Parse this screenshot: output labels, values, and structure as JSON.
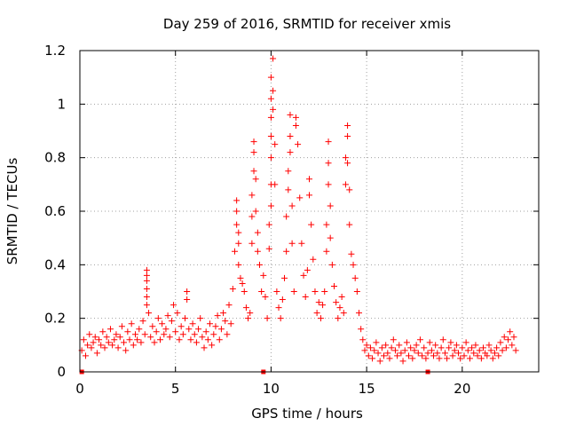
{
  "chart_data": {
    "type": "scatter",
    "title": "Day 259 of 2016, SRMTID for receiver xmis",
    "xlabel": "GPS time / hours",
    "ylabel": "SRMTID / TECUs",
    "xlim": [
      0,
      24
    ],
    "ylim": [
      0,
      1.2
    ],
    "xticks": [
      0,
      5,
      10,
      15,
      20
    ],
    "yticks": [
      0,
      0.2,
      0.4,
      0.6,
      0.8,
      1,
      1.2
    ],
    "xtick_labels": [
      "0",
      "5",
      "10",
      "15",
      "20"
    ],
    "ytick_labels": [
      "0",
      "0.2",
      "0.4",
      "0.6",
      "0.8",
      "1",
      "1.2"
    ],
    "grid": true,
    "marker": "plus",
    "color": "#ff0000",
    "baseline_markers_x": [
      0.1,
      9.6,
      18.2
    ],
    "series": [
      {
        "name": "SRMTID",
        "points": [
          [
            0.1,
            0.08
          ],
          [
            0.2,
            0.12
          ],
          [
            0.3,
            0.06
          ],
          [
            0.4,
            0.1
          ],
          [
            0.5,
            0.14
          ],
          [
            0.6,
            0.09
          ],
          [
            0.7,
            0.11
          ],
          [
            0.8,
            0.13
          ],
          [
            0.9,
            0.07
          ],
          [
            1.0,
            0.12
          ],
          [
            1.1,
            0.1
          ],
          [
            1.2,
            0.15
          ],
          [
            1.3,
            0.09
          ],
          [
            1.4,
            0.13
          ],
          [
            1.5,
            0.11
          ],
          [
            1.6,
            0.16
          ],
          [
            1.7,
            0.1
          ],
          [
            1.8,
            0.12
          ],
          [
            1.9,
            0.14
          ],
          [
            2.0,
            0.09
          ],
          [
            2.1,
            0.13
          ],
          [
            2.2,
            0.17
          ],
          [
            2.3,
            0.11
          ],
          [
            2.4,
            0.08
          ],
          [
            2.5,
            0.15
          ],
          [
            2.6,
            0.12
          ],
          [
            2.7,
            0.18
          ],
          [
            2.8,
            0.1
          ],
          [
            2.9,
            0.14
          ],
          [
            3.0,
            0.12
          ],
          [
            3.1,
            0.16
          ],
          [
            3.2,
            0.11
          ],
          [
            3.3,
            0.19
          ],
          [
            3.4,
            0.14
          ],
          [
            3.5,
            0.38
          ],
          [
            3.5,
            0.36
          ],
          [
            3.5,
            0.34
          ],
          [
            3.5,
            0.31
          ],
          [
            3.5,
            0.28
          ],
          [
            3.5,
            0.25
          ],
          [
            3.6,
            0.22
          ],
          [
            3.7,
            0.13
          ],
          [
            3.8,
            0.17
          ],
          [
            3.9,
            0.11
          ],
          [
            4.0,
            0.15
          ],
          [
            4.1,
            0.2
          ],
          [
            4.2,
            0.12
          ],
          [
            4.3,
            0.18
          ],
          [
            4.4,
            0.14
          ],
          [
            4.5,
            0.16
          ],
          [
            4.6,
            0.21
          ],
          [
            4.7,
            0.13
          ],
          [
            4.8,
            0.19
          ],
          [
            4.9,
            0.25
          ],
          [
            5.0,
            0.15
          ],
          [
            5.1,
            0.22
          ],
          [
            5.2,
            0.12
          ],
          [
            5.3,
            0.17
          ],
          [
            5.4,
            0.14
          ],
          [
            5.5,
            0.2
          ],
          [
            5.6,
            0.3
          ],
          [
            5.6,
            0.27
          ],
          [
            5.7,
            0.16
          ],
          [
            5.8,
            0.12
          ],
          [
            5.9,
            0.18
          ],
          [
            6.0,
            0.14
          ],
          [
            6.1,
            0.11
          ],
          [
            6.2,
            0.16
          ],
          [
            6.3,
            0.2
          ],
          [
            6.4,
            0.13
          ],
          [
            6.5,
            0.09
          ],
          [
            6.6,
            0.15
          ],
          [
            6.7,
            0.12
          ],
          [
            6.8,
            0.18
          ],
          [
            6.9,
            0.1
          ],
          [
            7.0,
            0.14
          ],
          [
            7.1,
            0.17
          ],
          [
            7.2,
            0.21
          ],
          [
            7.3,
            0.12
          ],
          [
            7.4,
            0.16
          ],
          [
            7.5,
            0.22
          ],
          [
            7.6,
            0.19
          ],
          [
            7.7,
            0.14
          ],
          [
            7.8,
            0.25
          ],
          [
            7.9,
            0.18
          ],
          [
            8.0,
            0.31
          ],
          [
            8.1,
            0.45
          ],
          [
            8.2,
            0.64
          ],
          [
            8.2,
            0.6
          ],
          [
            8.2,
            0.55
          ],
          [
            8.3,
            0.52
          ],
          [
            8.3,
            0.48
          ],
          [
            8.3,
            0.4
          ],
          [
            8.4,
            0.35
          ],
          [
            8.5,
            0.33
          ],
          [
            8.6,
            0.3
          ],
          [
            8.7,
            0.24
          ],
          [
            8.8,
            0.2
          ],
          [
            8.9,
            0.22
          ],
          [
            9.0,
            0.48
          ],
          [
            9.0,
            0.58
          ],
          [
            9.0,
            0.66
          ],
          [
            9.1,
            0.75
          ],
          [
            9.1,
            0.82
          ],
          [
            9.1,
            0.86
          ],
          [
            9.2,
            0.72
          ],
          [
            9.2,
            0.6
          ],
          [
            9.3,
            0.52
          ],
          [
            9.3,
            0.45
          ],
          [
            9.4,
            0.4
          ],
          [
            9.5,
            0.3
          ],
          [
            9.6,
            0.36
          ],
          [
            9.7,
            0.28
          ],
          [
            9.8,
            0.2
          ],
          [
            9.9,
            0.46
          ],
          [
            9.9,
            0.55
          ],
          [
            10.0,
            0.62
          ],
          [
            10.0,
            0.7
          ],
          [
            10.0,
            0.8
          ],
          [
            10.0,
            0.88
          ],
          [
            10.0,
            0.95
          ],
          [
            10.0,
            1.02
          ],
          [
            10.0,
            1.1
          ],
          [
            10.1,
            1.17
          ],
          [
            10.1,
            1.05
          ],
          [
            10.1,
            0.98
          ],
          [
            10.2,
            0.85
          ],
          [
            10.2,
            0.7
          ],
          [
            10.3,
            0.3
          ],
          [
            10.4,
            0.24
          ],
          [
            10.5,
            0.2
          ],
          [
            10.6,
            0.27
          ],
          [
            10.7,
            0.35
          ],
          [
            10.8,
            0.45
          ],
          [
            10.8,
            0.58
          ],
          [
            10.9,
            0.68
          ],
          [
            10.9,
            0.75
          ],
          [
            11.0,
            0.96
          ],
          [
            11.0,
            0.88
          ],
          [
            11.0,
            0.82
          ],
          [
            11.1,
            0.62
          ],
          [
            11.1,
            0.48
          ],
          [
            11.2,
            0.3
          ],
          [
            11.3,
            0.95
          ],
          [
            11.3,
            0.92
          ],
          [
            11.4,
            0.85
          ],
          [
            11.5,
            0.65
          ],
          [
            11.6,
            0.48
          ],
          [
            11.7,
            0.36
          ],
          [
            11.8,
            0.28
          ],
          [
            11.9,
            0.38
          ],
          [
            12.0,
            0.72
          ],
          [
            12.0,
            0.66
          ],
          [
            12.1,
            0.55
          ],
          [
            12.2,
            0.42
          ],
          [
            12.3,
            0.3
          ],
          [
            12.4,
            0.22
          ],
          [
            12.5,
            0.26
          ],
          [
            12.6,
            0.2
          ],
          [
            12.7,
            0.25
          ],
          [
            12.8,
            0.3
          ],
          [
            12.9,
            0.45
          ],
          [
            12.9,
            0.55
          ],
          [
            13.0,
            0.86
          ],
          [
            13.0,
            0.78
          ],
          [
            13.0,
            0.7
          ],
          [
            13.1,
            0.62
          ],
          [
            13.1,
            0.5
          ],
          [
            13.2,
            0.4
          ],
          [
            13.3,
            0.32
          ],
          [
            13.4,
            0.26
          ],
          [
            13.5,
            0.2
          ],
          [
            13.6,
            0.24
          ],
          [
            13.7,
            0.28
          ],
          [
            13.8,
            0.22
          ],
          [
            13.9,
            0.7
          ],
          [
            13.9,
            0.8
          ],
          [
            14.0,
            0.92
          ],
          [
            14.0,
            0.88
          ],
          [
            14.0,
            0.78
          ],
          [
            14.1,
            0.68
          ],
          [
            14.1,
            0.55
          ],
          [
            14.2,
            0.44
          ],
          [
            14.3,
            0.4
          ],
          [
            14.4,
            0.35
          ],
          [
            14.5,
            0.3
          ],
          [
            14.6,
            0.22
          ],
          [
            14.7,
            0.16
          ],
          [
            14.8,
            0.12
          ],
          [
            14.9,
            0.08
          ],
          [
            15.0,
            0.1
          ],
          [
            15.1,
            0.06
          ],
          [
            15.2,
            0.09
          ],
          [
            15.3,
            0.05
          ],
          [
            15.4,
            0.08
          ],
          [
            15.5,
            0.11
          ],
          [
            15.6,
            0.07
          ],
          [
            15.7,
            0.04
          ],
          [
            15.8,
            0.09
          ],
          [
            15.9,
            0.06
          ],
          [
            16.0,
            0.1
          ],
          [
            16.1,
            0.07
          ],
          [
            16.2,
            0.05
          ],
          [
            16.3,
            0.09
          ],
          [
            16.4,
            0.12
          ],
          [
            16.5,
            0.08
          ],
          [
            16.6,
            0.06
          ],
          [
            16.7,
            0.1
          ],
          [
            16.8,
            0.07
          ],
          [
            16.9,
            0.04
          ],
          [
            17.0,
            0.08
          ],
          [
            17.1,
            0.11
          ],
          [
            17.2,
            0.06
          ],
          [
            17.3,
            0.09
          ],
          [
            17.4,
            0.05
          ],
          [
            17.5,
            0.08
          ],
          [
            17.6,
            0.1
          ],
          [
            17.7,
            0.07
          ],
          [
            17.8,
            0.12
          ],
          [
            17.9,
            0.06
          ],
          [
            18.0,
            0.09
          ],
          [
            18.1,
            0.05
          ],
          [
            18.2,
            0.07
          ],
          [
            18.3,
            0.11
          ],
          [
            18.4,
            0.08
          ],
          [
            18.5,
            0.06
          ],
          [
            18.6,
            0.1
          ],
          [
            18.7,
            0.07
          ],
          [
            18.8,
            0.05
          ],
          [
            18.9,
            0.09
          ],
          [
            19.0,
            0.12
          ],
          [
            19.1,
            0.07
          ],
          [
            19.2,
            0.05
          ],
          [
            19.3,
            0.09
          ],
          [
            19.4,
            0.11
          ],
          [
            19.5,
            0.06
          ],
          [
            19.6,
            0.08
          ],
          [
            19.7,
            0.1
          ],
          [
            19.8,
            0.07
          ],
          [
            19.9,
            0.05
          ],
          [
            20.0,
            0.09
          ],
          [
            20.1,
            0.06
          ],
          [
            20.2,
            0.11
          ],
          [
            20.3,
            0.08
          ],
          [
            20.4,
            0.05
          ],
          [
            20.5,
            0.09
          ],
          [
            20.6,
            0.07
          ],
          [
            20.7,
            0.1
          ],
          [
            20.8,
            0.06
          ],
          [
            20.9,
            0.08
          ],
          [
            21.0,
            0.05
          ],
          [
            21.1,
            0.09
          ],
          [
            21.2,
            0.07
          ],
          [
            21.3,
            0.06
          ],
          [
            21.4,
            0.1
          ],
          [
            21.5,
            0.08
          ],
          [
            21.6,
            0.05
          ],
          [
            21.7,
            0.07
          ],
          [
            21.8,
            0.09
          ],
          [
            21.9,
            0.06
          ],
          [
            22.0,
            0.11
          ],
          [
            22.1,
            0.08
          ],
          [
            22.2,
            0.13
          ],
          [
            22.3,
            0.09
          ],
          [
            22.4,
            0.12
          ],
          [
            22.5,
            0.15
          ],
          [
            22.6,
            0.1
          ],
          [
            22.7,
            0.13
          ],
          [
            22.8,
            0.08
          ]
        ]
      }
    ]
  }
}
